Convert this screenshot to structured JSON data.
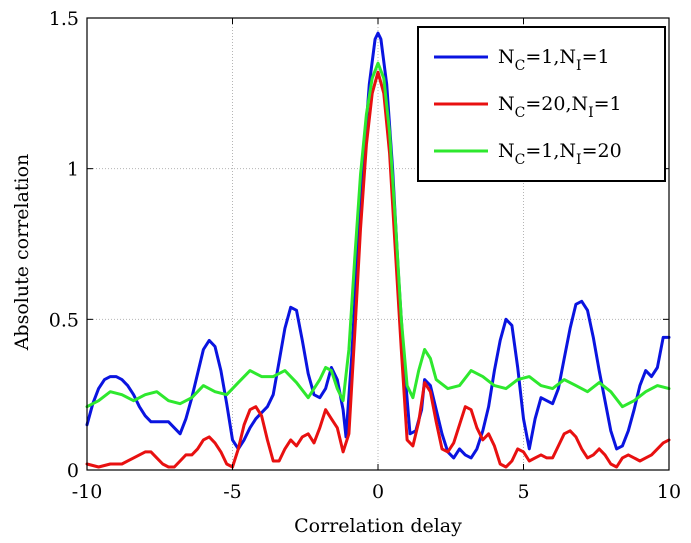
{
  "chart_data": {
    "type": "line",
    "xlabel": "Correlation delay",
    "ylabel": "Absolute correlation",
    "xlim": [
      -10,
      10
    ],
    "ylim": [
      0,
      1.5
    ],
    "xticks": [
      "-10",
      "-5",
      "0",
      "5",
      "10"
    ],
    "yticks": [
      "0",
      "0.5",
      "1",
      "1.5"
    ],
    "grid": true,
    "legend_position": "top-right",
    "series": [
      {
        "name": "N_C=1,N_I=1",
        "legend": {
          "a": "N",
          "a_sub": "C",
          "b": "=1,N",
          "b_sub": "I",
          "c": "=1"
        },
        "color": "#0a14e0",
        "points": [
          [
            -10,
            0.15
          ],
          [
            -9.8,
            0.22
          ],
          [
            -9.6,
            0.27
          ],
          [
            -9.4,
            0.3
          ],
          [
            -9.2,
            0.31
          ],
          [
            -9.0,
            0.31
          ],
          [
            -8.8,
            0.3
          ],
          [
            -8.6,
            0.28
          ],
          [
            -8.4,
            0.25
          ],
          [
            -8.2,
            0.21
          ],
          [
            -8.0,
            0.18
          ],
          [
            -7.8,
            0.16
          ],
          [
            -7.6,
            0.16
          ],
          [
            -7.4,
            0.16
          ],
          [
            -7.2,
            0.16
          ],
          [
            -7.0,
            0.14
          ],
          [
            -6.8,
            0.12
          ],
          [
            -6.6,
            0.17
          ],
          [
            -6.4,
            0.24
          ],
          [
            -6.2,
            0.32
          ],
          [
            -6.0,
            0.4
          ],
          [
            -5.8,
            0.43
          ],
          [
            -5.6,
            0.41
          ],
          [
            -5.4,
            0.33
          ],
          [
            -5.2,
            0.22
          ],
          [
            -5.0,
            0.1
          ],
          [
            -4.8,
            0.07
          ],
          [
            -4.6,
            0.1
          ],
          [
            -4.4,
            0.14
          ],
          [
            -4.2,
            0.17
          ],
          [
            -4.0,
            0.19
          ],
          [
            -3.8,
            0.21
          ],
          [
            -3.6,
            0.25
          ],
          [
            -3.4,
            0.36
          ],
          [
            -3.2,
            0.47
          ],
          [
            -3.0,
            0.54
          ],
          [
            -2.8,
            0.53
          ],
          [
            -2.6,
            0.43
          ],
          [
            -2.4,
            0.32
          ],
          [
            -2.2,
            0.25
          ],
          [
            -2.0,
            0.24
          ],
          [
            -1.8,
            0.27
          ],
          [
            -1.6,
            0.34
          ],
          [
            -1.4,
            0.3
          ],
          [
            -1.2,
            0.2
          ],
          [
            -1.1,
            0.11
          ],
          [
            -0.9,
            0.38
          ],
          [
            -0.7,
            0.73
          ],
          [
            -0.5,
            1.02
          ],
          [
            -0.3,
            1.28
          ],
          [
            -0.1,
            1.43
          ],
          [
            0.0,
            1.45
          ],
          [
            0.1,
            1.43
          ],
          [
            0.3,
            1.28
          ],
          [
            0.5,
            1.0
          ],
          [
            0.7,
            0.65
          ],
          [
            0.9,
            0.35
          ],
          [
            1.1,
            0.12
          ],
          [
            1.3,
            0.13
          ],
          [
            1.5,
            0.2
          ],
          [
            1.6,
            0.3
          ],
          [
            1.8,
            0.28
          ],
          [
            2.0,
            0.2
          ],
          [
            2.2,
            0.12
          ],
          [
            2.4,
            0.06
          ],
          [
            2.6,
            0.04
          ],
          [
            2.8,
            0.07
          ],
          [
            3.0,
            0.05
          ],
          [
            3.2,
            0.04
          ],
          [
            3.4,
            0.07
          ],
          [
            3.6,
            0.13
          ],
          [
            3.8,
            0.21
          ],
          [
            4.0,
            0.33
          ],
          [
            4.2,
            0.43
          ],
          [
            4.4,
            0.5
          ],
          [
            4.6,
            0.48
          ],
          [
            4.8,
            0.34
          ],
          [
            5.0,
            0.17
          ],
          [
            5.2,
            0.07
          ],
          [
            5.4,
            0.17
          ],
          [
            5.6,
            0.24
          ],
          [
            5.8,
            0.23
          ],
          [
            6.0,
            0.22
          ],
          [
            6.2,
            0.27
          ],
          [
            6.4,
            0.37
          ],
          [
            6.6,
            0.47
          ],
          [
            6.8,
            0.55
          ],
          [
            7.0,
            0.56
          ],
          [
            7.2,
            0.53
          ],
          [
            7.4,
            0.44
          ],
          [
            7.6,
            0.33
          ],
          [
            7.8,
            0.23
          ],
          [
            8.0,
            0.13
          ],
          [
            8.2,
            0.07
          ],
          [
            8.4,
            0.08
          ],
          [
            8.6,
            0.13
          ],
          [
            8.8,
            0.2
          ],
          [
            9.0,
            0.28
          ],
          [
            9.2,
            0.33
          ],
          [
            9.4,
            0.31
          ],
          [
            9.6,
            0.34
          ],
          [
            9.8,
            0.44
          ],
          [
            10.0,
            0.44
          ]
        ]
      },
      {
        "name": "N_C=20,N_I=1",
        "legend": {
          "a": "N",
          "a_sub": "C",
          "b": "=20,N",
          "b_sub": "I",
          "c": "=1"
        },
        "color": "#e81010",
        "points": [
          [
            -10,
            0.02
          ],
          [
            -9.6,
            0.01
          ],
          [
            -9.2,
            0.02
          ],
          [
            -8.8,
            0.02
          ],
          [
            -8.4,
            0.04
          ],
          [
            -8.0,
            0.06
          ],
          [
            -7.8,
            0.06
          ],
          [
            -7.6,
            0.04
          ],
          [
            -7.4,
            0.02
          ],
          [
            -7.2,
            0.01
          ],
          [
            -7.0,
            0.01
          ],
          [
            -6.8,
            0.03
          ],
          [
            -6.6,
            0.05
          ],
          [
            -6.4,
            0.05
          ],
          [
            -6.2,
            0.07
          ],
          [
            -6.0,
            0.1
          ],
          [
            -5.8,
            0.11
          ],
          [
            -5.6,
            0.09
          ],
          [
            -5.4,
            0.06
          ],
          [
            -5.2,
            0.02
          ],
          [
            -5.0,
            0.01
          ],
          [
            -4.8,
            0.07
          ],
          [
            -4.6,
            0.15
          ],
          [
            -4.4,
            0.2
          ],
          [
            -4.2,
            0.21
          ],
          [
            -4.0,
            0.18
          ],
          [
            -3.8,
            0.1
          ],
          [
            -3.6,
            0.03
          ],
          [
            -3.4,
            0.03
          ],
          [
            -3.2,
            0.07
          ],
          [
            -3.0,
            0.1
          ],
          [
            -2.8,
            0.08
          ],
          [
            -2.6,
            0.11
          ],
          [
            -2.4,
            0.12
          ],
          [
            -2.2,
            0.09
          ],
          [
            -2.0,
            0.14
          ],
          [
            -1.8,
            0.2
          ],
          [
            -1.6,
            0.17
          ],
          [
            -1.4,
            0.14
          ],
          [
            -1.2,
            0.06
          ],
          [
            -1.0,
            0.12
          ],
          [
            -0.8,
            0.45
          ],
          [
            -0.6,
            0.8
          ],
          [
            -0.4,
            1.08
          ],
          [
            -0.2,
            1.25
          ],
          [
            0.0,
            1.32
          ],
          [
            0.2,
            1.25
          ],
          [
            0.4,
            1.05
          ],
          [
            0.6,
            0.72
          ],
          [
            0.8,
            0.4
          ],
          [
            1.0,
            0.1
          ],
          [
            1.2,
            0.08
          ],
          [
            1.4,
            0.16
          ],
          [
            1.6,
            0.29
          ],
          [
            1.8,
            0.26
          ],
          [
            2.0,
            0.16
          ],
          [
            2.2,
            0.07
          ],
          [
            2.4,
            0.06
          ],
          [
            2.6,
            0.09
          ],
          [
            2.8,
            0.15
          ],
          [
            3.0,
            0.21
          ],
          [
            3.2,
            0.2
          ],
          [
            3.4,
            0.14
          ],
          [
            3.6,
            0.1
          ],
          [
            3.8,
            0.12
          ],
          [
            4.0,
            0.08
          ],
          [
            4.2,
            0.02
          ],
          [
            4.4,
            0.01
          ],
          [
            4.6,
            0.03
          ],
          [
            4.8,
            0.07
          ],
          [
            5.0,
            0.06
          ],
          [
            5.2,
            0.03
          ],
          [
            5.4,
            0.04
          ],
          [
            5.6,
            0.05
          ],
          [
            5.8,
            0.04
          ],
          [
            6.0,
            0.04
          ],
          [
            6.2,
            0.08
          ],
          [
            6.4,
            0.12
          ],
          [
            6.6,
            0.13
          ],
          [
            6.8,
            0.11
          ],
          [
            7.0,
            0.07
          ],
          [
            7.2,
            0.04
          ],
          [
            7.4,
            0.05
          ],
          [
            7.6,
            0.07
          ],
          [
            7.8,
            0.05
          ],
          [
            8.0,
            0.02
          ],
          [
            8.2,
            0.01
          ],
          [
            8.4,
            0.04
          ],
          [
            8.6,
            0.05
          ],
          [
            8.8,
            0.04
          ],
          [
            9.0,
            0.03
          ],
          [
            9.2,
            0.04
          ],
          [
            9.4,
            0.05
          ],
          [
            9.6,
            0.07
          ],
          [
            9.8,
            0.09
          ],
          [
            10.0,
            0.1
          ]
        ]
      },
      {
        "name": "N_C=1,N_I=20",
        "legend": {
          "a": "N",
          "a_sub": "C",
          "b": "=1,N",
          "b_sub": "I",
          "c": "=20"
        },
        "color": "#2ee82e",
        "points": [
          [
            -10,
            0.21
          ],
          [
            -9.6,
            0.23
          ],
          [
            -9.2,
            0.26
          ],
          [
            -8.8,
            0.25
          ],
          [
            -8.4,
            0.23
          ],
          [
            -8.0,
            0.25
          ],
          [
            -7.6,
            0.26
          ],
          [
            -7.2,
            0.23
          ],
          [
            -6.8,
            0.22
          ],
          [
            -6.4,
            0.24
          ],
          [
            -6.0,
            0.28
          ],
          [
            -5.6,
            0.26
          ],
          [
            -5.2,
            0.25
          ],
          [
            -4.8,
            0.29
          ],
          [
            -4.4,
            0.33
          ],
          [
            -4.0,
            0.31
          ],
          [
            -3.6,
            0.31
          ],
          [
            -3.2,
            0.33
          ],
          [
            -2.8,
            0.29
          ],
          [
            -2.4,
            0.24
          ],
          [
            -2.0,
            0.3
          ],
          [
            -1.8,
            0.34
          ],
          [
            -1.6,
            0.33
          ],
          [
            -1.4,
            0.27
          ],
          [
            -1.2,
            0.23
          ],
          [
            -1.0,
            0.4
          ],
          [
            -0.8,
            0.7
          ],
          [
            -0.6,
            0.98
          ],
          [
            -0.4,
            1.18
          ],
          [
            -0.2,
            1.3
          ],
          [
            0.0,
            1.35
          ],
          [
            0.2,
            1.3
          ],
          [
            0.4,
            1.12
          ],
          [
            0.6,
            0.82
          ],
          [
            0.8,
            0.5
          ],
          [
            1.0,
            0.28
          ],
          [
            1.2,
            0.24
          ],
          [
            1.4,
            0.33
          ],
          [
            1.6,
            0.4
          ],
          [
            1.8,
            0.37
          ],
          [
            2.0,
            0.3
          ],
          [
            2.4,
            0.27
          ],
          [
            2.8,
            0.28
          ],
          [
            3.2,
            0.33
          ],
          [
            3.6,
            0.31
          ],
          [
            4.0,
            0.28
          ],
          [
            4.4,
            0.27
          ],
          [
            4.8,
            0.3
          ],
          [
            5.2,
            0.31
          ],
          [
            5.6,
            0.28
          ],
          [
            6.0,
            0.27
          ],
          [
            6.4,
            0.3
          ],
          [
            6.8,
            0.28
          ],
          [
            7.2,
            0.26
          ],
          [
            7.6,
            0.29
          ],
          [
            8.0,
            0.26
          ],
          [
            8.4,
            0.21
          ],
          [
            8.8,
            0.23
          ],
          [
            9.2,
            0.26
          ],
          [
            9.6,
            0.28
          ],
          [
            10.0,
            0.27
          ]
        ]
      }
    ]
  }
}
